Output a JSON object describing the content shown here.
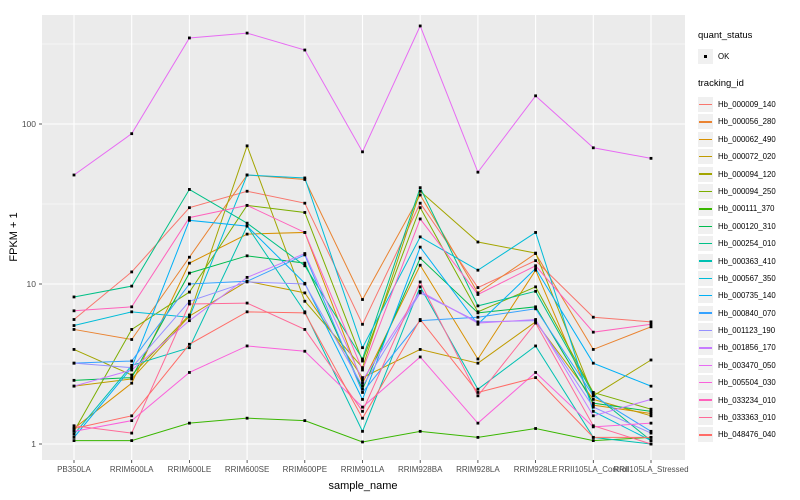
{
  "legend": {
    "quant_status_title": "quant_status",
    "quant_status_value": "OK",
    "tracking_id_title": "tracking_id"
  },
  "chart_data": {
    "type": "line",
    "title": "",
    "xlabel": "sample_name",
    "ylabel": "FPKM + 1",
    "y_scale": "log10",
    "y_ticks": [
      1,
      10,
      100
    ],
    "ylim": [
      0.8,
      480
    ],
    "grid": "on",
    "legend_position": "right",
    "panel_bg": "#EBEBEB",
    "grid_color": "#FFFFFF",
    "point_color": "#000000",
    "tick_text_color": "#4d4d4d",
    "categories": [
      "PB350LA",
      "RRIM600LA",
      "RRIM600LE",
      "RRIM600SE",
      "RRIM600PE",
      "RRIM901LA",
      "RRIM928BA",
      "RRIM928LA",
      "RRIM928LE",
      "RRII105LA_Control",
      "RRII105LA_Stressed"
    ],
    "series": [
      {
        "name": "Hb_000009_140",
        "color": "#F8766D",
        "values": [
          6.0,
          11.9,
          30,
          38,
          32,
          5.6,
          32,
          9.5,
          14,
          6.2,
          5.8
        ]
      },
      {
        "name": "Hb_000056_280",
        "color": "#EA8331",
        "values": [
          5.2,
          4.5,
          14.7,
          48,
          45,
          8.0,
          36,
          8.8,
          15.5,
          3.9,
          5.4
        ]
      },
      {
        "name": "Hb_000062_490",
        "color": "#D89000",
        "values": [
          1.25,
          2.4,
          13.5,
          20.5,
          21,
          2.4,
          13.1,
          3.4,
          12.2,
          1.75,
          1.55
        ]
      },
      {
        "name": "Hb_000072_020",
        "color": "#C09B00",
        "values": [
          2.3,
          2.55,
          6.3,
          10.4,
          8.8,
          2.6,
          3.9,
          3.2,
          5.8,
          1.9,
          1.5
        ]
      },
      {
        "name": "Hb_000094_120",
        "color": "#A3A500",
        "values": [
          3.9,
          2.7,
          6.4,
          73,
          7.8,
          3.0,
          38,
          18.3,
          15.6,
          2.0,
          3.35
        ]
      },
      {
        "name": "Hb_000094_250",
        "color": "#7CAE00",
        "values": [
          1.2,
          5.2,
          8.9,
          31,
          28,
          3.3,
          30,
          6.7,
          9.6,
          2.1,
          1.65
        ]
      },
      {
        "name": "Hb_000111_370",
        "color": "#39B600",
        "values": [
          1.05,
          1.05,
          1.35,
          1.45,
          1.4,
          1.03,
          1.2,
          1.1,
          1.25,
          1.05,
          1.1
        ]
      },
      {
        "name": "Hb_000120_310",
        "color": "#00BB4E",
        "values": [
          2.5,
          2.6,
          11.7,
          15,
          13.5,
          2.2,
          14.5,
          6.6,
          7.2,
          1.8,
          1.6
        ]
      },
      {
        "name": "Hb_000254_010",
        "color": "#00C087",
        "values": [
          8.3,
          9.7,
          39,
          24,
          13,
          3.4,
          40,
          7.3,
          9.0,
          2.05,
          1.05
        ]
      },
      {
        "name": "Hb_000363_410",
        "color": "#00C0B2",
        "values": [
          1.15,
          3.1,
          4.0,
          23,
          6.7,
          1.2,
          9.6,
          2.2,
          4.1,
          1.1,
          1.0
        ]
      },
      {
        "name": "Hb_000567_350",
        "color": "#00BCD8",
        "values": [
          5.5,
          6.7,
          6.2,
          48,
          46,
          4.0,
          19.7,
          12.2,
          21,
          1.6,
          1.05
        ]
      },
      {
        "name": "Hb_000735_140",
        "color": "#00B0F6",
        "values": [
          1.1,
          3.0,
          25,
          23,
          10.1,
          1.9,
          17,
          5.6,
          12.5,
          3.2,
          2.3
        ]
      },
      {
        "name": "Hb_000840_070",
        "color": "#35A2FF",
        "values": [
          3.2,
          3.3,
          10,
          10.4,
          15.2,
          2.1,
          5.9,
          6.2,
          7.0,
          2.0,
          1.2
        ]
      },
      {
        "name": "Hb_001123_190",
        "color": "#9590FF",
        "values": [
          3.2,
          3.0,
          7.8,
          10.3,
          10.0,
          2.3,
          8.8,
          5.8,
          5.9,
          1.7,
          1.17
        ]
      },
      {
        "name": "Hb_001856_170",
        "color": "#C77CFF",
        "values": [
          2.3,
          2.9,
          5.9,
          11,
          15.5,
          2.5,
          9.0,
          5.7,
          6.0,
          1.5,
          1.9
        ]
      },
      {
        "name": "Hb_003470_050",
        "color": "#E76BF3",
        "values": [
          48,
          87,
          345,
          370,
          290,
          67,
          410,
          50,
          150,
          71,
          61
        ]
      },
      {
        "name": "Hb_005504_030",
        "color": "#FA62DB",
        "values": [
          1.2,
          1.4,
          2.8,
          4.1,
          3.8,
          1.7,
          3.5,
          1.35,
          2.8,
          1.28,
          1.35
        ]
      },
      {
        "name": "Hb_033234_010",
        "color": "#FF62BC",
        "values": [
          6.8,
          7.2,
          26,
          31,
          21,
          2.9,
          25.5,
          8.6,
          13,
          5.0,
          5.6
        ]
      },
      {
        "name": "Hb_033363_010",
        "color": "#FF6A98",
        "values": [
          1.3,
          1.17,
          7.5,
          7.6,
          5.2,
          1.6,
          10.3,
          2.0,
          5.7,
          1.3,
          1.0
        ]
      },
      {
        "name": "Hb_048476_040",
        "color": "#FF6C67",
        "values": [
          1.25,
          1.5,
          4.2,
          6.7,
          6.6,
          1.45,
          6.0,
          2.1,
          2.6,
          1.1,
          1.1
        ]
      }
    ]
  }
}
